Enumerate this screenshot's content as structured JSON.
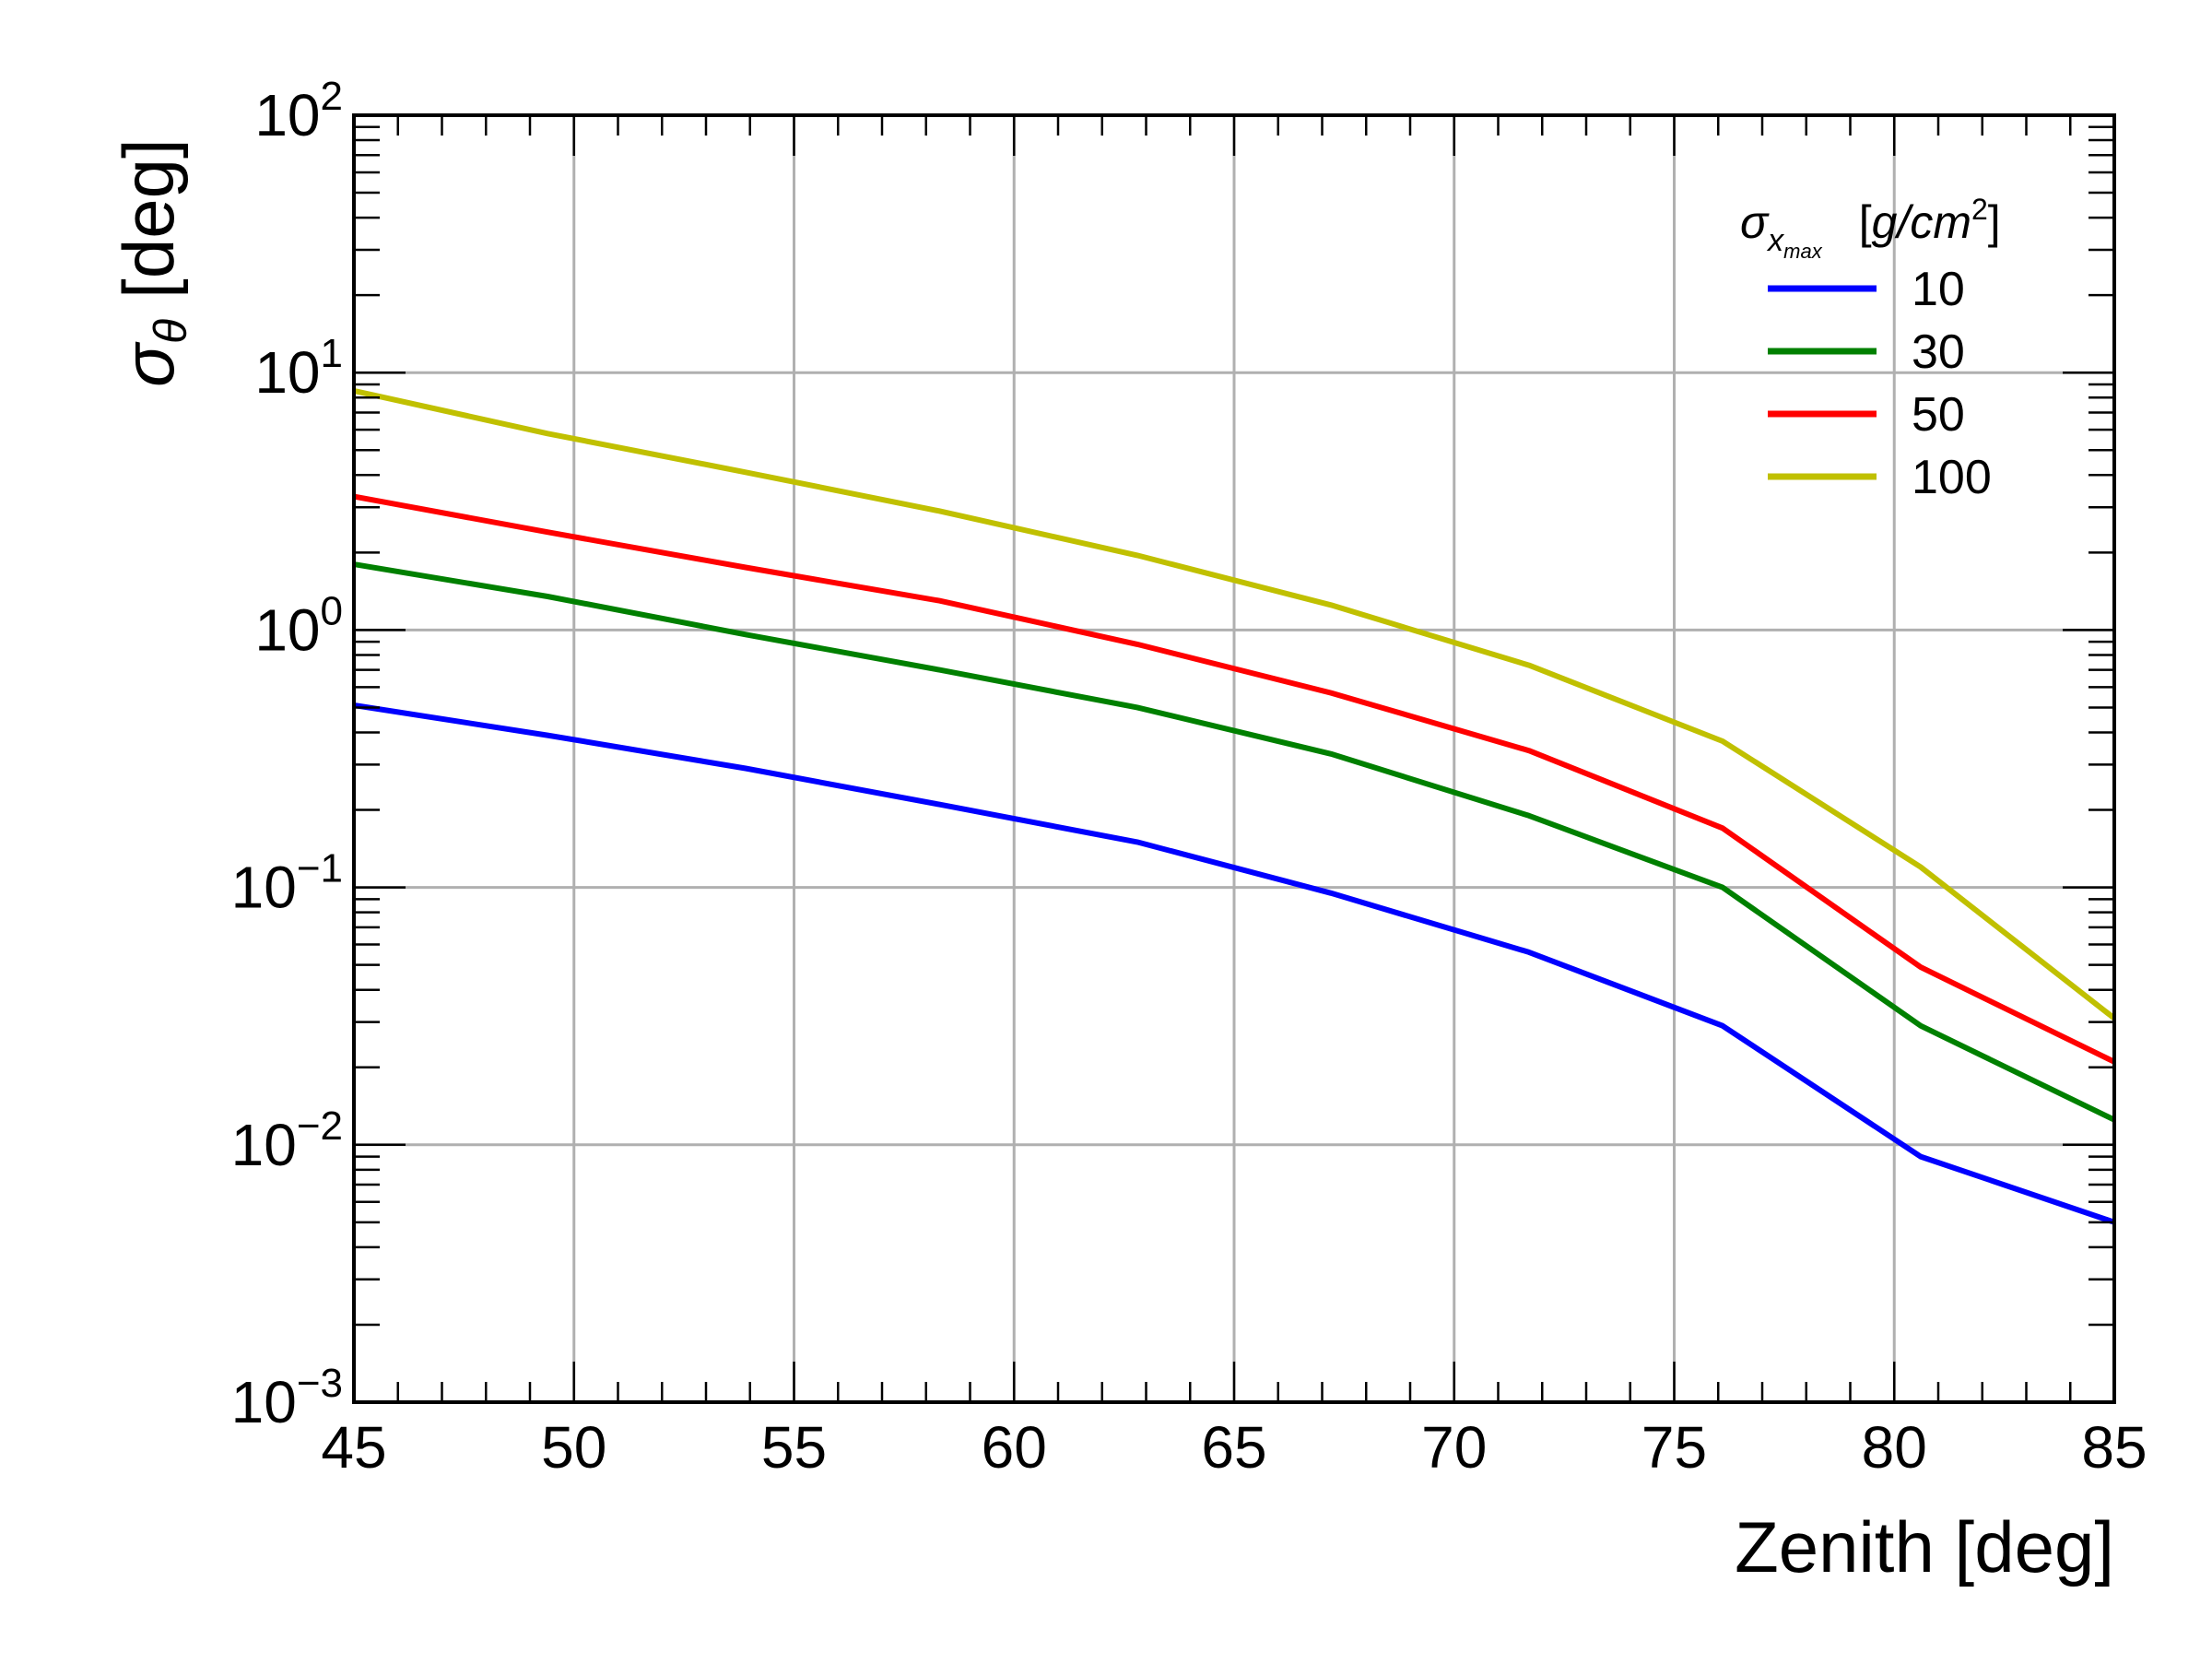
{
  "chart_data": {
    "type": "line",
    "xlabel": "Zenith  [deg]",
    "ylabel": {
      "symbol": "σ",
      "subscript": "θ",
      "unit": "[deg]"
    },
    "xlim": [
      45,
      85
    ],
    "ylim": [
      0.001,
      100
    ],
    "yscale": "log",
    "grid": true,
    "legend_placement": "top-right",
    "legend_title": {
      "symbol": "σ",
      "subscript_x": "x",
      "subscript_max": "max",
      "unit_open": "[",
      "unit": "g/cm",
      "unit_exp": "2",
      "unit_close": "]"
    },
    "x_ticks": [
      "45",
      "50",
      "55",
      "60",
      "65",
      "70",
      "75",
      "80",
      "85"
    ],
    "y_ticks": [
      {
        "base": "10",
        "exp": "2"
      },
      {
        "base": "10",
        "exp": "1"
      },
      {
        "base": "10",
        "exp": "0"
      },
      {
        "base": "10",
        "exp": "−1"
      },
      {
        "base": "10",
        "exp": "−2"
      },
      {
        "base": "10",
        "exp": "−3"
      }
    ],
    "x": [
      45.0,
      49.4,
      53.9,
      58.3,
      62.8,
      67.2,
      71.7,
      76.1,
      80.6,
      85.0
    ],
    "series": [
      {
        "name": "10",
        "color": "#0000ff",
        "values": [
          0.51,
          0.39,
          0.29,
          0.21,
          0.15,
          0.095,
          0.056,
          0.029,
          0.009,
          0.005
        ]
      },
      {
        "name": "30",
        "color": "#008000",
        "values": [
          1.8,
          1.35,
          0.96,
          0.7,
          0.5,
          0.33,
          0.19,
          0.1,
          0.029,
          0.0125
        ]
      },
      {
        "name": "50",
        "color": "#ff0000",
        "values": [
          3.3,
          2.4,
          1.75,
          1.3,
          0.88,
          0.57,
          0.34,
          0.17,
          0.049,
          0.021
        ]
      },
      {
        "name": "100",
        "color": "#c0c000",
        "values": [
          8.5,
          5.8,
          4.1,
          2.9,
          1.95,
          1.25,
          0.73,
          0.37,
          0.12,
          0.031
        ]
      }
    ]
  }
}
